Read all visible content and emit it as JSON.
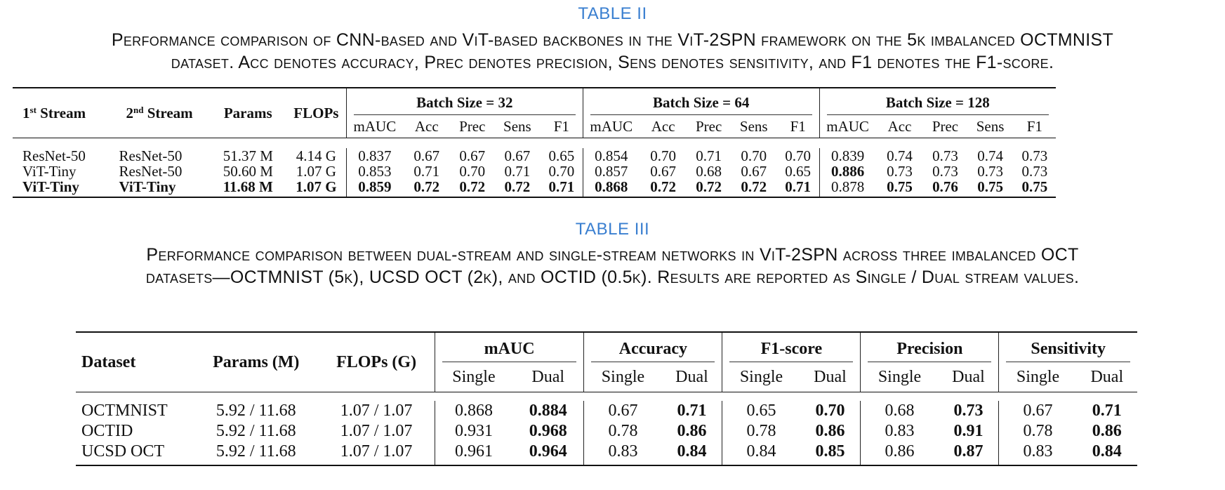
{
  "table2": {
    "label": "TABLE II",
    "caption_line1": "Performance comparison of CNN-based and ViT-based backbones in the ViT-2SPN framework on the 5k imbalanced OCTMNIST",
    "caption_line2": "dataset. Acc denotes accuracy, Prec denotes precision, Sens denotes sensitivity, and F1 denotes the F1-score.",
    "headers": {
      "stream1": "1",
      "stream1_sup": "st",
      "stream1_suffix": " Stream",
      "stream2": "2",
      "stream2_sup": "nd",
      "stream2_suffix": " Stream",
      "params": "Params",
      "flops": "FLOPs",
      "groups": [
        "Batch Size = 32",
        "Batch Size = 64",
        "Batch Size = 128"
      ],
      "metrics": [
        "mAUC",
        "Acc",
        "Prec",
        "Sens",
        "F1"
      ]
    },
    "rows": [
      {
        "s1": "ResNet-50",
        "s2": "ResNet-50",
        "params": "51.37 M",
        "flops": "4.14 G",
        "v": [
          "0.837",
          "0.67",
          "0.67",
          "0.67",
          "0.65",
          "0.854",
          "0.70",
          "0.71",
          "0.70",
          "0.70",
          "0.839",
          "0.74",
          "0.73",
          "0.74",
          "0.73"
        ]
      },
      {
        "s1": "ViT-Tiny",
        "s2": "ResNet-50",
        "params": "50.60 M",
        "flops": "1.07 G",
        "v": [
          "0.853",
          "0.71",
          "0.70",
          "0.71",
          "0.70",
          "0.857",
          "0.67",
          "0.68",
          "0.67",
          "0.65",
          "0.886",
          "0.73",
          "0.73",
          "0.73",
          "0.73"
        ]
      },
      {
        "s1": "ViT-Tiny",
        "s2": "ViT-Tiny",
        "params": "11.68 M",
        "flops": "1.07 G",
        "v": [
          "0.859",
          "0.72",
          "0.72",
          "0.72",
          "0.71",
          "0.868",
          "0.72",
          "0.72",
          "0.72",
          "0.71",
          "0.878",
          "0.75",
          "0.76",
          "0.75",
          "0.75"
        ]
      }
    ]
  },
  "table3": {
    "label": "TABLE III",
    "caption_line1": "Performance comparison between dual-stream and single-stream networks in ViT-2SPN across three imbalanced OCT",
    "caption_line2": "datasets—OCTMNIST (5k), UCSD OCT (2k), and OCTID (0.5k). Results are reported as Single / Dual stream values.",
    "headers": {
      "dataset": "Dataset",
      "params": "Params (M)",
      "flops": "FLOPs (G)",
      "groups": [
        "mAUC",
        "Accuracy",
        "F1-score",
        "Precision",
        "Sensitivity"
      ],
      "sub": [
        "Single",
        "Dual"
      ]
    },
    "rows": [
      {
        "dataset": "OCTMNIST",
        "params": "5.92 / 11.68",
        "flops": "1.07 / 1.07",
        "v": [
          "0.868",
          "0.884",
          "0.67",
          "0.71",
          "0.65",
          "0.70",
          "0.68",
          "0.73",
          "0.67",
          "0.71"
        ]
      },
      {
        "dataset": "OCTID",
        "params": "5.92 / 11.68",
        "flops": "1.07 / 1.07",
        "v": [
          "0.931",
          "0.968",
          "0.78",
          "0.86",
          "0.78",
          "0.86",
          "0.83",
          "0.91",
          "0.78",
          "0.86"
        ]
      },
      {
        "dataset": "UCSD OCT",
        "params": "5.92 / 11.68",
        "flops": "1.07 / 1.07",
        "v": [
          "0.961",
          "0.964",
          "0.83",
          "0.84",
          "0.84",
          "0.85",
          "0.86",
          "0.87",
          "0.83",
          "0.84"
        ]
      }
    ]
  }
}
